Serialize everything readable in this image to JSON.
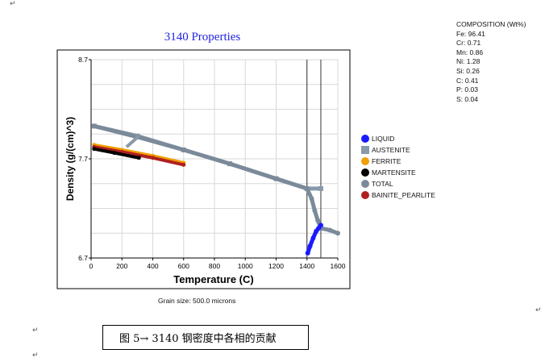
{
  "composition": {
    "title": "COMPOSITION (Wt%)",
    "items": [
      "Fe: 96.41",
      "Cr: 0.71",
      "Mn: 0.86",
      "Ni: 1.28",
      "Si: 0.26",
      "C: 0.41",
      "P: 0.03",
      "S: 0.04"
    ]
  },
  "grain_size": "Grain size: 500.0 microns",
  "caption": "图 5→ 3140 钢密度中各相的贡献",
  "para_marks": [
    "↵",
    "↵",
    "↵",
    "↵"
  ],
  "chart_data": {
    "type": "scatter",
    "title": "3140 Properties",
    "xlabel": "Temperature (C)",
    "ylabel": "Density (g/(cm)^3)",
    "xlim": [
      0,
      1600
    ],
    "ylim": [
      6.7,
      8.7
    ],
    "xticks": [
      "0",
      "200",
      "400",
      "600",
      "800",
      "1000",
      "1200",
      "1400",
      "1600"
    ],
    "yticks": [
      "6.7",
      "7.7",
      "8.7"
    ],
    "vlines": [
      1400,
      1490
    ],
    "legend_position": "right",
    "series": [
      {
        "name": "LIQUID",
        "color": "#1a1aff",
        "marker": "circle",
        "points": [
          [
            1405,
            6.75
          ],
          [
            1420,
            6.82
          ],
          [
            1440,
            6.9
          ],
          [
            1460,
            6.97
          ],
          [
            1475,
            7.0
          ],
          [
            1490,
            7.03
          ]
        ]
      },
      {
        "name": "AUSTENITE",
        "color": "#8899aa",
        "marker": "square",
        "points": [
          [
            20,
            8.03
          ],
          [
            300,
            7.93
          ],
          [
            600,
            7.79
          ],
          [
            900,
            7.65
          ],
          [
            1200,
            7.5
          ],
          [
            1400,
            7.4
          ],
          [
            1490,
            7.4
          ]
        ]
      },
      {
        "name": "FERRITE",
        "color": "#f0a000",
        "marker": "circle",
        "points": [
          [
            20,
            7.84
          ],
          [
            200,
            7.79
          ],
          [
            400,
            7.73
          ],
          [
            600,
            7.66
          ]
        ]
      },
      {
        "name": "MARTENSITE",
        "color": "#000000",
        "marker": "circle",
        "points": [
          [
            20,
            7.8
          ],
          [
            150,
            7.76
          ],
          [
            310,
            7.71
          ]
        ]
      },
      {
        "name": "TOTAL",
        "color": "#7b8a9a",
        "marker": "circle",
        "points": [
          [
            20,
            8.03
          ],
          [
            300,
            7.92
          ],
          [
            600,
            7.79
          ],
          [
            900,
            7.65
          ],
          [
            1200,
            7.5
          ],
          [
            1400,
            7.4
          ],
          [
            1430,
            7.3
          ],
          [
            1450,
            7.18
          ],
          [
            1470,
            7.08
          ],
          [
            1490,
            7.0
          ],
          [
            1550,
            6.98
          ],
          [
            1600,
            6.95
          ]
        ]
      },
      {
        "name": "BAINITE_PEARLITE",
        "color": "#b02020",
        "marker": "circle",
        "points": [
          [
            20,
            7.82
          ],
          [
            200,
            7.77
          ],
          [
            400,
            7.71
          ],
          [
            600,
            7.64
          ]
        ]
      }
    ]
  }
}
